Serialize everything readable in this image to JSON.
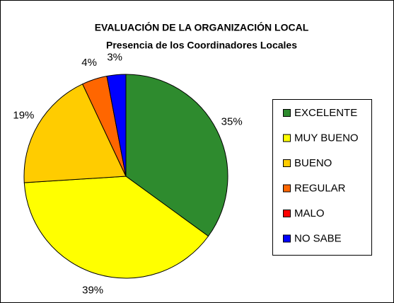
{
  "chart_data": {
    "type": "pie",
    "title": "EVALUACIÓN DE LA ORGANIZACIÓN LOCAL",
    "subtitle": "Presencia de los Coordinadores Locales",
    "categories": [
      "EXCELENTE",
      "MUY BUENO",
      "BUENO",
      "REGULAR",
      "MALO",
      "NO SABE"
    ],
    "values": [
      35,
      39,
      19,
      4,
      0,
      3
    ],
    "value_labels": [
      "35%",
      "39%",
      "19%",
      "4%",
      null,
      "3%"
    ],
    "colors": [
      "#2E8B2E",
      "#FFFF00",
      "#FFCC00",
      "#FF6600",
      "#FF0000",
      "#0000FF"
    ],
    "legend": "right"
  }
}
